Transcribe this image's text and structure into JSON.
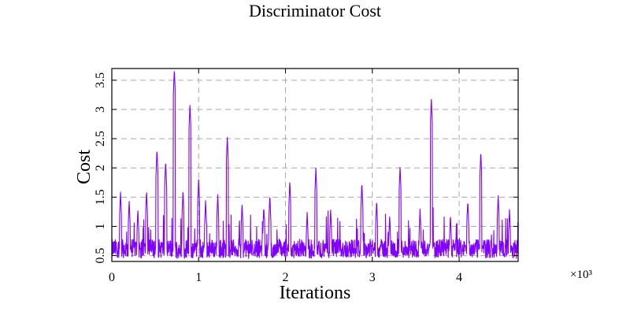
{
  "chart_data": {
    "type": "line",
    "title": "Discriminator Cost",
    "xlabel": "Iterations",
    "ylabel": "Cost",
    "x_multiplier_label": "×10³",
    "xlim": [
      0,
      4.68
    ],
    "ylim": [
      0.4,
      3.7
    ],
    "x_ticks": [
      0,
      1,
      2,
      3,
      4
    ],
    "x_tick_labels": [
      "0",
      "1",
      "2",
      "3",
      "4"
    ],
    "y_ticks": [
      0.5,
      1,
      1.5,
      2,
      2.5,
      3,
      3.5
    ],
    "y_tick_labels": [
      "0.5",
      "1",
      "1.5",
      "2",
      "2.5",
      "3",
      "3.5"
    ],
    "grid": true,
    "grid_style": "dashed",
    "line_color": "#7f00ff",
    "baseline": 0.62,
    "peaks": [
      [
        0.1,
        1.6
      ],
      [
        0.2,
        1.45
      ],
      [
        0.3,
        1.3
      ],
      [
        0.4,
        1.62
      ],
      [
        0.52,
        2.33
      ],
      [
        0.62,
        2.13
      ],
      [
        0.72,
        3.7
      ],
      [
        0.82,
        1.62
      ],
      [
        0.9,
        3.1
      ],
      [
        1.0,
        1.82
      ],
      [
        1.08,
        1.45
      ],
      [
        1.22,
        1.55
      ],
      [
        1.33,
        2.54
      ],
      [
        1.5,
        1.4
      ],
      [
        1.75,
        1.35
      ],
      [
        1.82,
        1.55
      ],
      [
        2.05,
        1.78
      ],
      [
        2.25,
        1.25
      ],
      [
        2.35,
        2.0
      ],
      [
        2.52,
        1.3
      ],
      [
        2.88,
        1.76
      ],
      [
        3.05,
        1.45
      ],
      [
        3.2,
        1.2
      ],
      [
        3.32,
        2.03
      ],
      [
        3.55,
        1.3
      ],
      [
        3.68,
        3.19
      ],
      [
        3.9,
        1.2
      ],
      [
        4.1,
        1.45
      ],
      [
        4.25,
        2.28
      ],
      [
        4.45,
        1.55
      ],
      [
        4.58,
        1.3
      ]
    ]
  }
}
